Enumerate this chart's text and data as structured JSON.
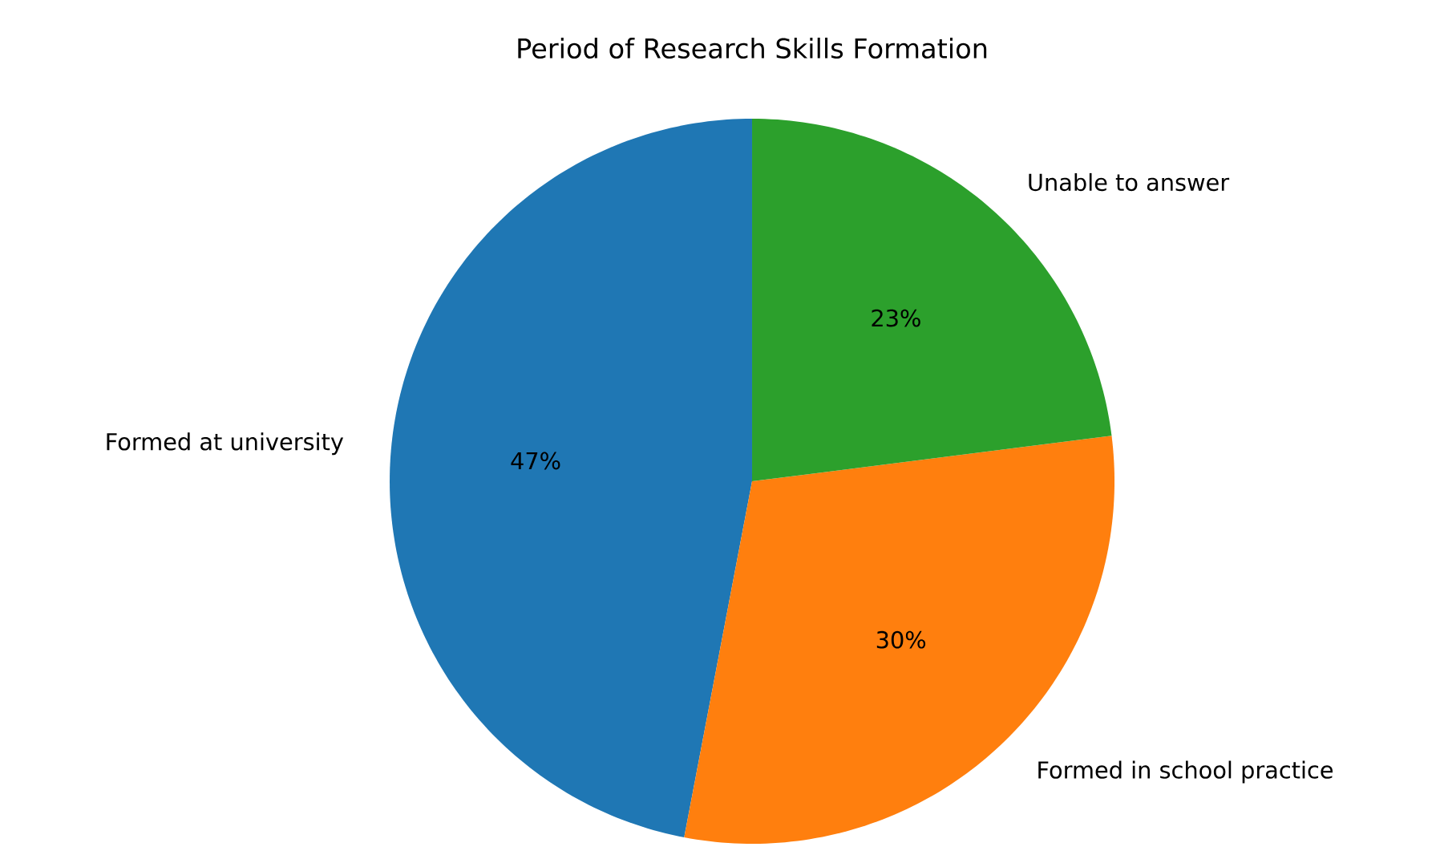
{
  "chart_data": {
    "type": "pie",
    "title": "Period of Research Skills Formation",
    "categories": [
      "Formed at university",
      "Formed in school practice",
      "Unable to answer"
    ],
    "values": [
      47,
      30,
      23
    ],
    "value_labels": [
      "47%",
      "30%",
      "23%"
    ],
    "colors": [
      "#1f77b4",
      "#ff7f0e",
      "#2ca02c"
    ]
  }
}
